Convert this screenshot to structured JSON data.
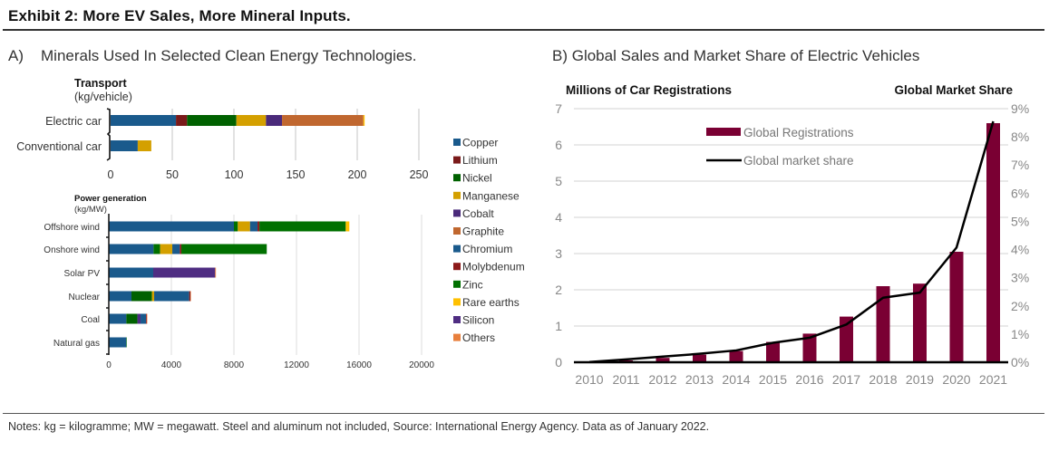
{
  "header": {
    "title": "Exhibit 2: More EV Sales, More Mineral Inputs."
  },
  "panel_a": {
    "letter": "A)",
    "title": "Minerals Used In Selected Clean Energy Technologies."
  },
  "panel_b": {
    "title": "B) Global Sales and Market Share of Electric Vehicles"
  },
  "footer": {
    "notes": "Notes: kg = kilogramme; MW = megawatt. Steel and aluminum not included, Source: International Energy Agency. Data as of January 2022."
  },
  "chart_data": [
    {
      "id": "transport",
      "type": "bar",
      "orientation": "horizontal",
      "stacked": true,
      "title": "Transport",
      "subtitle": "(kg/vehicle)",
      "categories": [
        "Electric car",
        "Conventional car"
      ],
      "xlim": [
        0,
        250
      ],
      "xticks": [
        0,
        50,
        100,
        150,
        200,
        250
      ],
      "grid": true,
      "series": [
        {
          "name": "Copper",
          "values": [
            53,
            22
          ]
        },
        {
          "name": "Lithium",
          "values": [
            9,
            0
          ]
        },
        {
          "name": "Nickel",
          "values": [
            40,
            0
          ]
        },
        {
          "name": "Manganese",
          "values": [
            24,
            11
          ]
        },
        {
          "name": "Cobalt",
          "values": [
            13,
            0
          ]
        },
        {
          "name": "Graphite",
          "values": [
            66,
            0
          ]
        },
        {
          "name": "Rare earths",
          "values": [
            1,
            0
          ]
        }
      ]
    },
    {
      "id": "power",
      "type": "bar",
      "orientation": "horizontal",
      "stacked": true,
      "title": "Power generation",
      "subtitle": "(kg/MW)",
      "categories": [
        "Offshore wind",
        "Onshore wind",
        "Solar PV",
        "Nuclear",
        "Coal",
        "Natural gas"
      ],
      "xlim": [
        0,
        20000
      ],
      "xticks": [
        0,
        4000,
        8000,
        12000,
        16000,
        20000
      ],
      "grid": true,
      "series": [
        {
          "name": "Copper",
          "values": [
            8000,
            2860,
            2840,
            1450,
            1120,
            1120
          ]
        },
        {
          "name": "Nickel",
          "values": [
            0,
            0,
            0,
            1310,
            710,
            0
          ]
        },
        {
          "name": "Zinc",
          "values": [
            250,
            420,
            0,
            0,
            0,
            30
          ]
        },
        {
          "name": "Manganese",
          "values": [
            780,
            780,
            0,
            140,
            0,
            0
          ]
        },
        {
          "name": "Silicon",
          "values": [
            0,
            0,
            3960,
            0,
            200,
            0
          ]
        },
        {
          "name": "Chromium",
          "values": [
            480,
            480,
            0,
            2240,
            350,
            0
          ]
        },
        {
          "name": "Molybdenum",
          "values": [
            120,
            100,
            0,
            80,
            50,
            0
          ]
        },
        {
          "name": "Zinc (2)",
          "values": [
            5520,
            5460,
            0,
            0,
            0,
            0
          ]
        },
        {
          "name": "Rare earths",
          "values": [
            230,
            0,
            0,
            0,
            0,
            0
          ]
        },
        {
          "name": "Others",
          "values": [
            0,
            0,
            50,
            30,
            30,
            0
          ]
        }
      ]
    },
    {
      "id": "legend_a",
      "type": "legend",
      "entries": [
        {
          "name": "Copper",
          "color": "#1a5a8c"
        },
        {
          "name": "Lithium",
          "color": "#7a1a1a"
        },
        {
          "name": "Nickel",
          "color": "#006100"
        },
        {
          "name": "Manganese",
          "color": "#d4a000"
        },
        {
          "name": "Cobalt",
          "color": "#4a2a7a"
        },
        {
          "name": "Graphite",
          "color": "#c0672f"
        },
        {
          "name": "Chromium",
          "color": "#1a5a8c"
        },
        {
          "name": "Molybdenum",
          "color": "#8c1a1a"
        },
        {
          "name": "Zinc",
          "color": "#007000"
        },
        {
          "name": "Rare earths",
          "color": "#ffc000"
        },
        {
          "name": "Silicon",
          "color": "#4f2d82"
        },
        {
          "name": "Others",
          "color": "#e87f3c"
        }
      ]
    },
    {
      "id": "ev",
      "type": "bar+line",
      "title": "B) Global Sales and Market Share of Electric Vehicles",
      "ylabel": "Millions of Car Registrations",
      "y2label": "Global Market Share",
      "categories": [
        "2010",
        "2011",
        "2012",
        "2013",
        "2014",
        "2015",
        "2016",
        "2017",
        "2018",
        "2019",
        "2020",
        "2021"
      ],
      "ylim": [
        0,
        7
      ],
      "yticks": [
        0,
        1,
        2,
        3,
        4,
        5,
        6,
        7
      ],
      "y2lim": [
        0,
        9
      ],
      "y2ticks": [
        "0%",
        "1%",
        "2%",
        "3%",
        "4%",
        "5%",
        "6%",
        "7%",
        "8%",
        "9%"
      ],
      "grid": true,
      "legend_position": "top-center",
      "series": [
        {
          "name": "Global Registrations",
          "type": "bar",
          "axis": "left",
          "color": "#7a0033",
          "values": [
            0.02,
            0.05,
            0.12,
            0.21,
            0.31,
            0.56,
            0.79,
            1.26,
            2.1,
            2.17,
            3.05,
            6.6
          ]
        },
        {
          "name": "Global market share",
          "type": "line",
          "axis": "right",
          "color": "#000000",
          "values": [
            0.01,
            0.1,
            0.2,
            0.3,
            0.42,
            0.69,
            0.87,
            1.34,
            2.29,
            2.47,
            4.07,
            8.55
          ]
        }
      ]
    }
  ]
}
